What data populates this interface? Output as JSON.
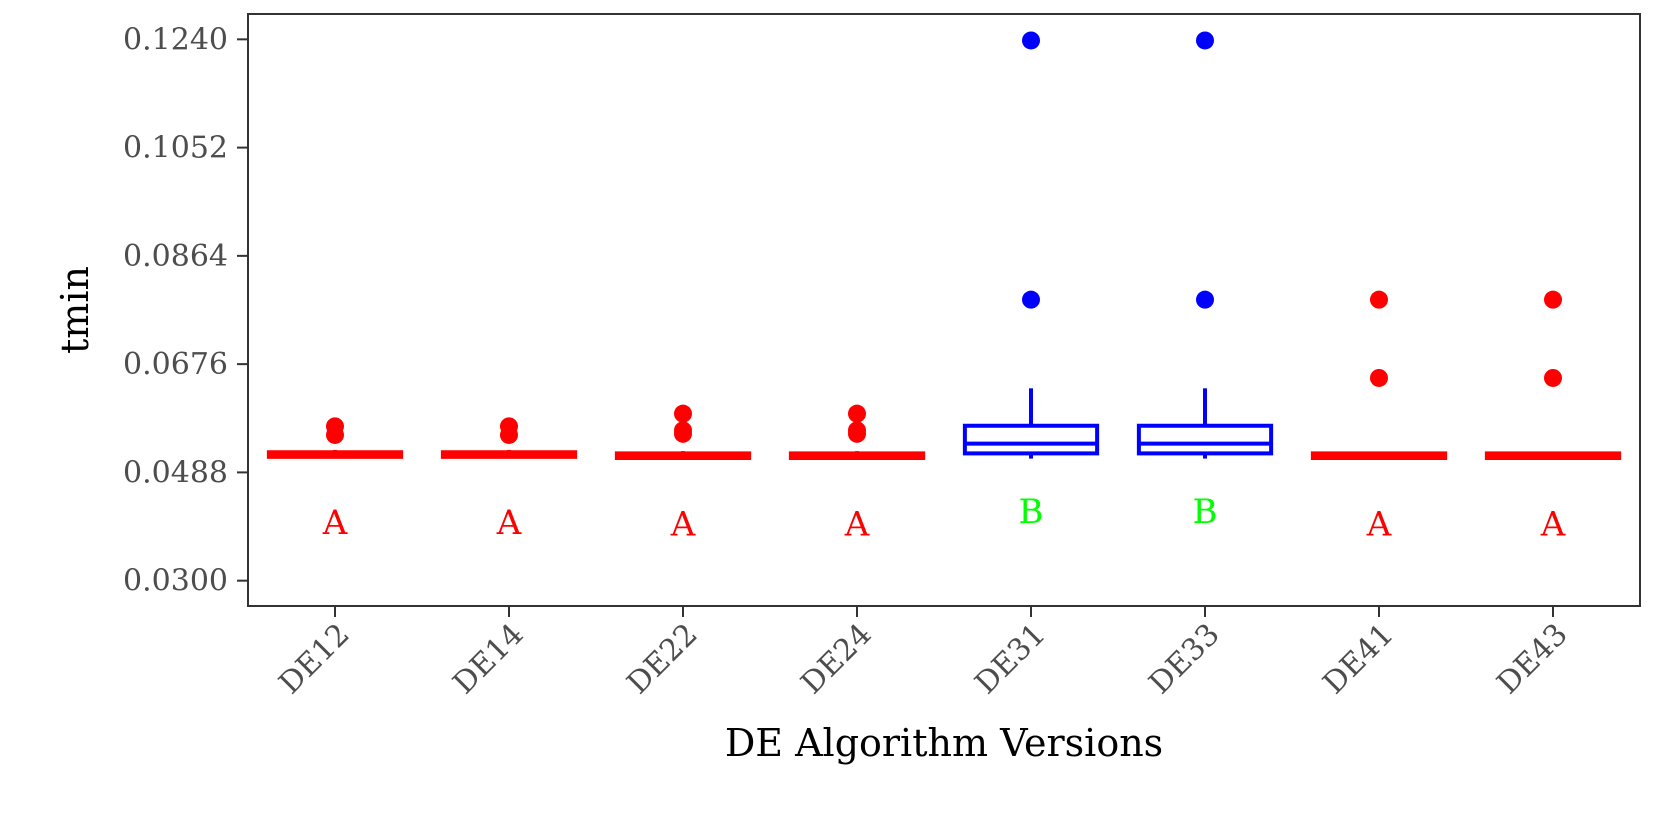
{
  "chart_data": {
    "type": "boxplot",
    "title": "",
    "xlabel": "DE Algorithm Versions",
    "ylabel": "tmin",
    "ylim": [
      0.0256,
      0.1284
    ],
    "yticks": [
      "0.0300",
      "0.0488",
      "0.0676",
      "0.0864",
      "0.1052",
      "0.1240"
    ],
    "grid": false,
    "legend": "none",
    "colors": {
      "A": "#ff0000",
      "B": "#0000ff",
      "letter_B": "#00ff00"
    },
    "categories": [
      "DE12",
      "DE14",
      "DE22",
      "DE24",
      "DE31",
      "DE33",
      "DE41",
      "DE43"
    ],
    "boxes": [
      {
        "name": "DE12",
        "group": "A",
        "min": 0.0515,
        "q1": 0.0515,
        "median": 0.0519,
        "q3": 0.0523,
        "max": 0.0527,
        "outliers": [
          0.0553,
          0.0568
        ]
      },
      {
        "name": "DE14",
        "group": "A",
        "min": 0.0515,
        "q1": 0.0515,
        "median": 0.0519,
        "q3": 0.0523,
        "max": 0.0527,
        "outliers": [
          0.0553,
          0.0568
        ]
      },
      {
        "name": "DE22",
        "group": "A",
        "min": 0.0513,
        "q1": 0.0513,
        "median": 0.0517,
        "q3": 0.0521,
        "max": 0.0525,
        "outliers": [
          0.0555,
          0.0561,
          0.059
        ]
      },
      {
        "name": "DE24",
        "group": "A",
        "min": 0.0513,
        "q1": 0.0513,
        "median": 0.0517,
        "q3": 0.0521,
        "max": 0.0525,
        "outliers": [
          0.0555,
          0.0561,
          0.059
        ]
      },
      {
        "name": "DE31",
        "group": "B",
        "min": 0.0512,
        "q1": 0.0521,
        "median": 0.0538,
        "q3": 0.0569,
        "max": 0.0634,
        "outliers": [
          0.0788,
          0.1238
        ]
      },
      {
        "name": "DE33",
        "group": "B",
        "min": 0.0512,
        "q1": 0.0521,
        "median": 0.0538,
        "q3": 0.0569,
        "max": 0.0634,
        "outliers": [
          0.0788,
          0.1238
        ]
      },
      {
        "name": "DE41",
        "group": "A",
        "min": 0.0513,
        "q1": 0.0513,
        "median": 0.0517,
        "q3": 0.0521,
        "max": 0.0521,
        "outliers": [
          0.0652,
          0.0788
        ]
      },
      {
        "name": "DE43",
        "group": "A",
        "min": 0.0513,
        "q1": 0.0513,
        "median": 0.0517,
        "q3": 0.0521,
        "max": 0.0521,
        "outliers": [
          0.0652,
          0.0788
        ]
      }
    ],
    "letters": [
      {
        "x": "DE12",
        "y": 0.0402,
        "text": "A"
      },
      {
        "x": "DE14",
        "y": 0.0402,
        "text": "A"
      },
      {
        "x": "DE22",
        "y": 0.0399,
        "text": "A"
      },
      {
        "x": "DE24",
        "y": 0.0399,
        "text": "A"
      },
      {
        "x": "DE31",
        "y": 0.0421,
        "text": "B"
      },
      {
        "x": "DE33",
        "y": 0.0421,
        "text": "B"
      },
      {
        "x": "DE41",
        "y": 0.0399,
        "text": "A"
      },
      {
        "x": "DE43",
        "y": 0.0399,
        "text": "A"
      }
    ]
  }
}
